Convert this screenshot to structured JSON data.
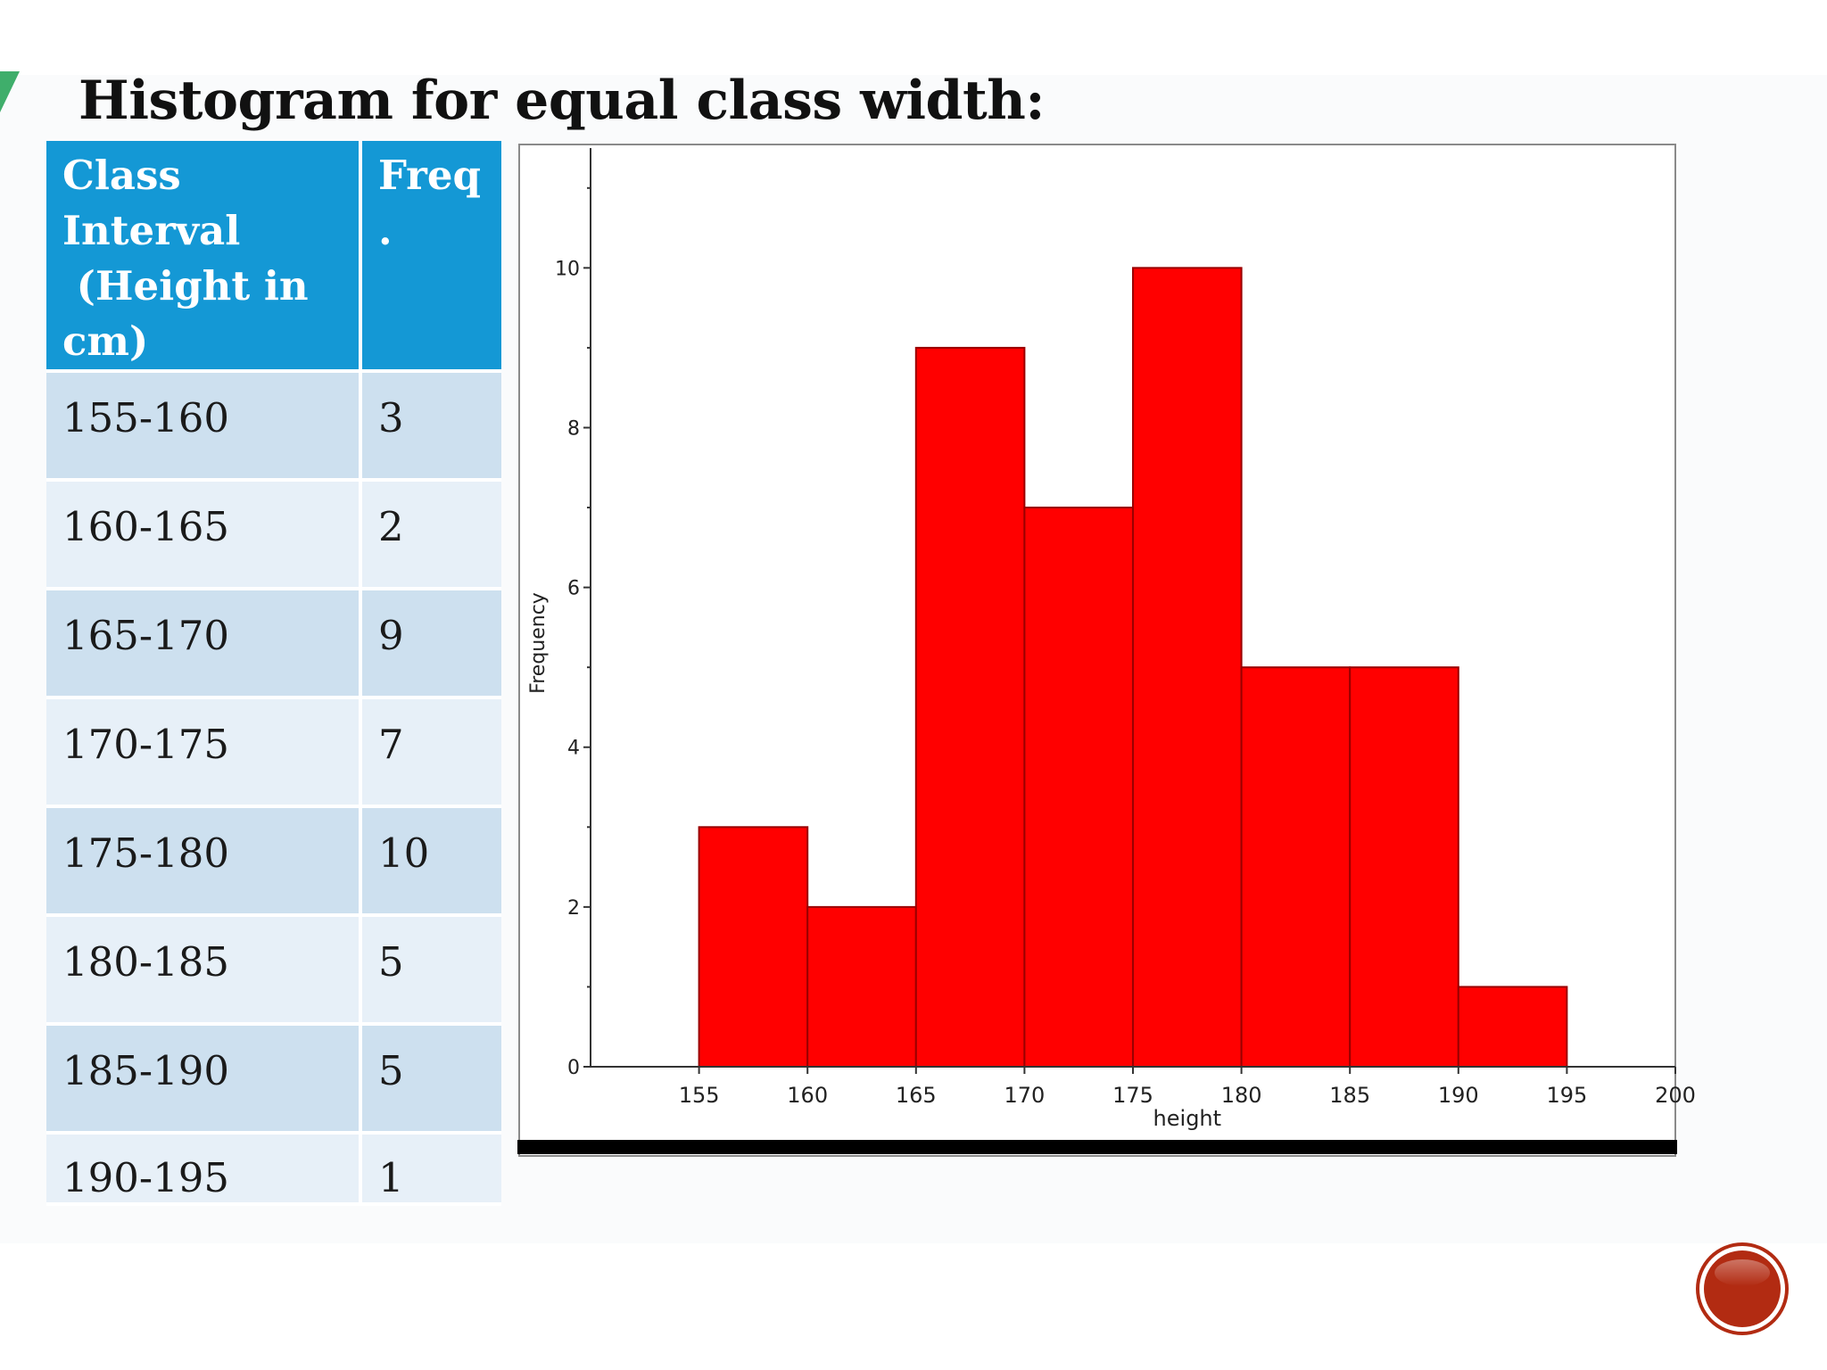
{
  "slide": {
    "title": "Histogram for equal class width:"
  },
  "table": {
    "headers": [
      "Class Interval (Height in cm)",
      "Freq."
    ],
    "header_class_lines": [
      "Class",
      "Interval",
      " (Height in",
      "cm)"
    ],
    "header_freq_lines": [
      "Freq",
      "."
    ],
    "rows": [
      {
        "interval": "155-160",
        "freq": "3"
      },
      {
        "interval": "160-165",
        "freq": "2"
      },
      {
        "interval": "165-170",
        "freq": "9"
      },
      {
        "interval": "170-175",
        "freq": "7"
      },
      {
        "interval": "175-180",
        "freq": "10"
      },
      {
        "interval": "180-185",
        "freq": "5"
      },
      {
        "interval": "185-190",
        "freq": "5"
      },
      {
        "interval": "190-195",
        "freq": "1"
      }
    ]
  },
  "chart_data": {
    "type": "bar",
    "bins": [
      [
        155,
        160
      ],
      [
        160,
        165
      ],
      [
        165,
        170
      ],
      [
        170,
        175
      ],
      [
        175,
        180
      ],
      [
        180,
        185
      ],
      [
        185,
        190
      ],
      [
        190,
        195
      ]
    ],
    "values": [
      3,
      2,
      9,
      7,
      10,
      5,
      5,
      1
    ],
    "xlabel": "height",
    "ylabel": "Frequency",
    "xlim": [
      150,
      200
    ],
    "ylim": [
      0,
      11.5
    ],
    "x_ticks": [
      "155",
      "160",
      "165",
      "170",
      "175",
      "180",
      "185",
      "190",
      "195",
      "200"
    ],
    "y_ticks": [
      "0",
      "2",
      "4",
      "6",
      "8",
      "10"
    ],
    "bar_color": "#ff0000",
    "grid": false
  },
  "nav": {
    "button_icon": "circle-button-icon",
    "button_color": "#b22b12"
  }
}
